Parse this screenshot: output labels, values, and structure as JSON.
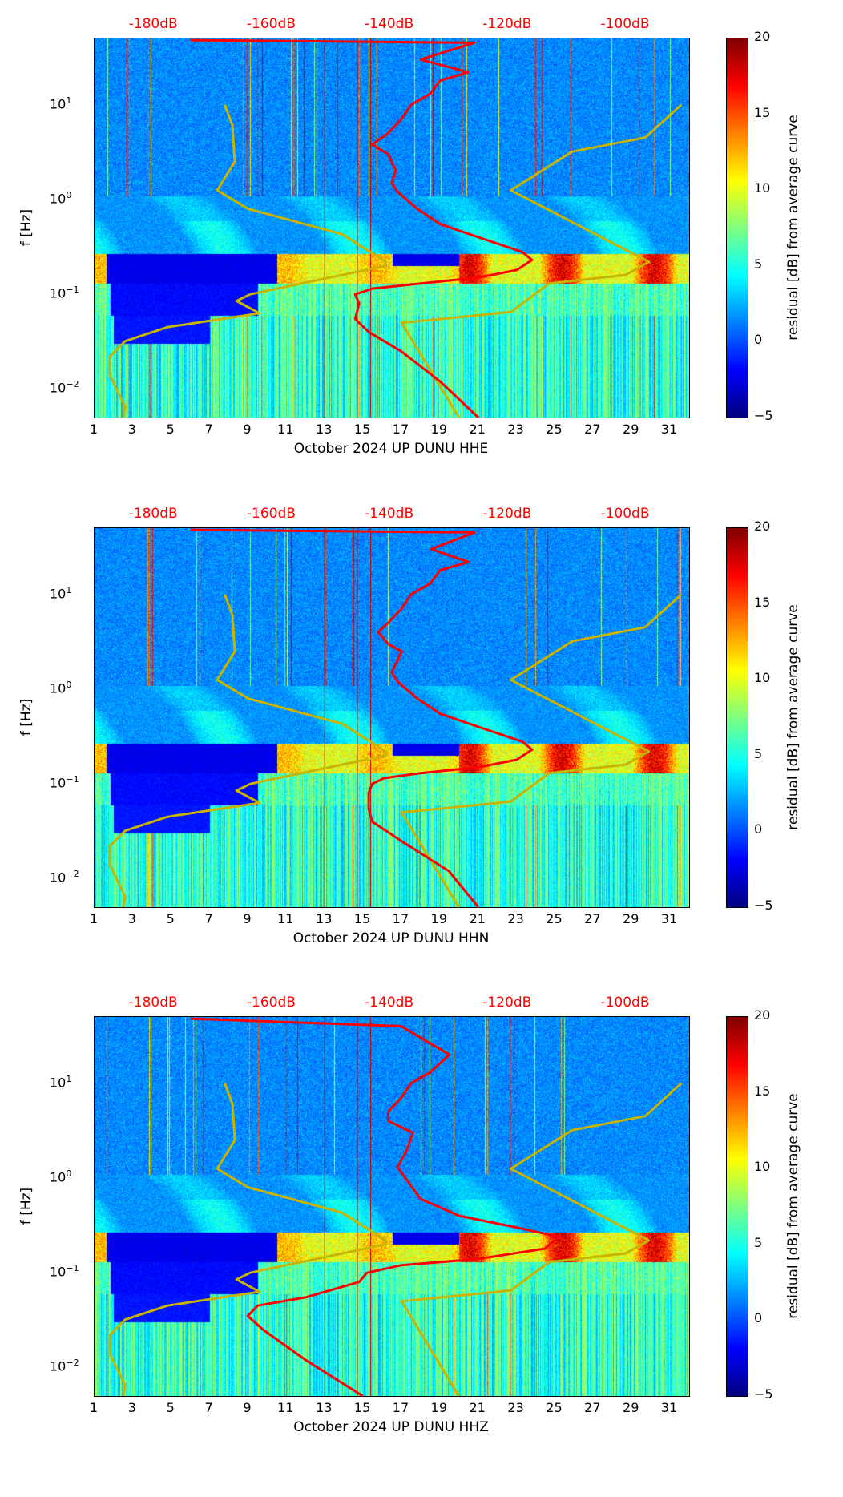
{
  "colorbar": {
    "label": "residual [dB] from average curve",
    "ticks": [
      "20",
      "15",
      "10",
      "5",
      "0",
      "−5"
    ],
    "values": [
      20,
      15,
      10,
      5,
      0,
      -5
    ],
    "range": [
      -5,
      20
    ]
  },
  "axes": {
    "ylabel": "f [Hz]",
    "yticks": [
      {
        "label": "10",
        "exp": "1",
        "value": 10
      },
      {
        "label": "10",
        "exp": "0",
        "value": 1
      },
      {
        "label": "10",
        "exp": "−1",
        "value": 0.1
      },
      {
        "label": "10",
        "exp": "−2",
        "value": 0.01
      }
    ],
    "ylim_hz": [
      0.005,
      50
    ],
    "xticks": [
      "1",
      "3",
      "5",
      "7",
      "9",
      "11",
      "13",
      "15",
      "17",
      "19",
      "21",
      "23",
      "25",
      "27",
      "29",
      "31"
    ],
    "xlim_day": [
      1,
      32
    ],
    "db_ticks": [
      "-180dB",
      "-160dB",
      "-140dB",
      "-120dB",
      "-100dB"
    ],
    "db_tick_values": [
      -180,
      -160,
      -140,
      -120,
      -100
    ]
  },
  "chart_data": [
    {
      "type": "heatmap",
      "xlabel": "October 2024 UP DUNU  HHE",
      "red_curve_db_hz": [
        [
          -125.0,
          0.005
        ],
        [
          -131.5,
          0.012
        ],
        [
          -138.1,
          0.025
        ],
        [
          -143.6,
          0.04
        ],
        [
          -145.9,
          0.055
        ],
        [
          -145.2,
          0.08
        ],
        [
          -145.9,
          0.1
        ],
        [
          -142.9,
          0.115
        ],
        [
          -134.8,
          0.13
        ],
        [
          -125.0,
          0.15
        ],
        [
          -118.5,
          0.18
        ],
        [
          -115.9,
          0.23
        ],
        [
          -117.6,
          0.28
        ],
        [
          -125.0,
          0.4
        ],
        [
          -131.5,
          0.55
        ],
        [
          -135.4,
          0.8
        ],
        [
          -138.7,
          1.2
        ],
        [
          -139.7,
          1.5
        ],
        [
          -139.0,
          2
        ],
        [
          -140.3,
          3
        ],
        [
          -143.0,
          3.8
        ],
        [
          -140.3,
          5
        ],
        [
          -138.1,
          7
        ],
        [
          -136.4,
          10
        ],
        [
          -133.2,
          13
        ],
        [
          -131.5,
          18
        ],
        [
          -126.7,
          22
        ],
        [
          -134.8,
          30
        ],
        [
          -125.7,
          45
        ],
        [
          -173.8,
          48
        ]
      ],
      "vlines_day": [
        13.0,
        14.7,
        15.4
      ]
    },
    {
      "type": "heatmap",
      "xlabel": "October 2024 UP DUNU  HHN",
      "red_curve_db_hz": [
        [
          -125.0,
          0.005
        ],
        [
          -130.0,
          0.012
        ],
        [
          -138.1,
          0.025
        ],
        [
          -143.0,
          0.04
        ],
        [
          -143.6,
          0.055
        ],
        [
          -143.6,
          0.08
        ],
        [
          -143.0,
          0.1
        ],
        [
          -141.0,
          0.115
        ],
        [
          -134.8,
          0.13
        ],
        [
          -125.0,
          0.15
        ],
        [
          -118.5,
          0.18
        ],
        [
          -115.9,
          0.23
        ],
        [
          -117.6,
          0.28
        ],
        [
          -125.0,
          0.4
        ],
        [
          -131.5,
          0.55
        ],
        [
          -135.4,
          0.8
        ],
        [
          -138.7,
          1.2
        ],
        [
          -139.7,
          1.5
        ],
        [
          -138.0,
          2.5
        ],
        [
          -140.3,
          3
        ],
        [
          -142.0,
          4
        ],
        [
          -140.3,
          5
        ],
        [
          -138.1,
          7
        ],
        [
          -136.4,
          10
        ],
        [
          -133.2,
          13
        ],
        [
          -131.5,
          18
        ],
        [
          -126.7,
          22
        ],
        [
          -133.0,
          30
        ],
        [
          -125.7,
          45
        ],
        [
          -173.8,
          48
        ]
      ],
      "vlines_day": [
        13.0,
        14.7,
        15.4
      ]
    },
    {
      "type": "heatmap",
      "xlabel": "October 2024 UP DUNU  HHZ",
      "red_curve_db_hz": [
        [
          -144.6,
          0.005
        ],
        [
          -154.3,
          0.012
        ],
        [
          -161.5,
          0.025
        ],
        [
          -164.1,
          0.035
        ],
        [
          -162.4,
          0.045
        ],
        [
          -154.3,
          0.055
        ],
        [
          -145.2,
          0.08
        ],
        [
          -143.9,
          0.1
        ],
        [
          -138.1,
          0.12
        ],
        [
          -125.0,
          0.14
        ],
        [
          -113.7,
          0.18
        ],
        [
          -111.4,
          0.24
        ],
        [
          -118.5,
          0.3
        ],
        [
          -128.3,
          0.4
        ],
        [
          -134.8,
          0.6
        ],
        [
          -137.4,
          1.0
        ],
        [
          -138.7,
          1.3
        ],
        [
          -137.1,
          2
        ],
        [
          -136.1,
          3
        ],
        [
          -140.3,
          4
        ],
        [
          -140.3,
          5
        ],
        [
          -138.1,
          7
        ],
        [
          -136.4,
          10
        ],
        [
          -133.2,
          13
        ],
        [
          -129.9,
          20
        ],
        [
          -138.1,
          40
        ],
        [
          -173.8,
          48
        ]
      ],
      "vlines_day": [
        13.0,
        14.7,
        15.4
      ]
    }
  ],
  "nlnm_db_hz": [
    [
      -185.2,
      0.005
    ],
    [
      -184.9,
      0.0065
    ],
    [
      -187.5,
      0.014
    ],
    [
      -187.5,
      0.022
    ],
    [
      -184.9,
      0.032
    ],
    [
      -177.7,
      0.045
    ],
    [
      -162.1,
      0.063
    ],
    [
      -166.0,
      0.085
    ],
    [
      -163.7,
      0.1
    ],
    [
      -140.7,
      0.2
    ],
    [
      -140.7,
      0.22
    ],
    [
      -148.1,
      0.43
    ],
    [
      -164.1,
      0.8
    ],
    [
      -169.3,
      1.25
    ],
    [
      -166.3,
      2.5
    ],
    [
      -166.7,
      6
    ],
    [
      -168.0,
      10
    ]
  ],
  "nhnm_db_hz": [
    [
      -128.3,
      0.005
    ],
    [
      -138.0,
      0.05
    ],
    [
      -119.5,
      0.065
    ],
    [
      -113.0,
      0.13
    ],
    [
      -100.0,
      0.16
    ],
    [
      -96.1,
      0.22
    ],
    [
      -119.5,
      1.25
    ],
    [
      -109.1,
      3.2
    ],
    [
      -96.7,
      4.5
    ],
    [
      -90.6,
      10
    ]
  ],
  "colors": {
    "red_curve": "#ff0000",
    "noise_models": "#c8b400",
    "db_labels": "#ff0000"
  }
}
